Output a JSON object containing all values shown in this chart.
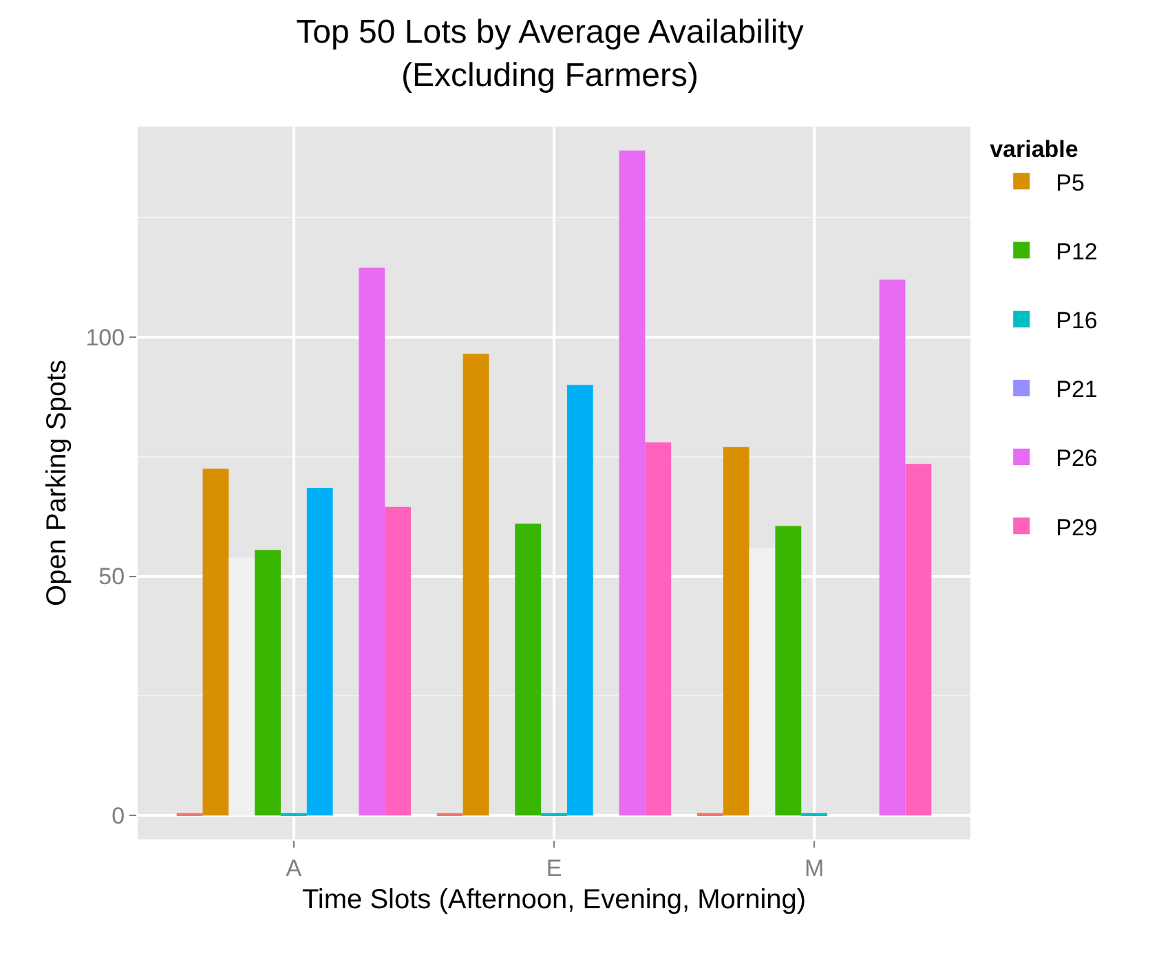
{
  "chart_data": {
    "type": "bar",
    "title": "Top 50 Lots by Average Availability\n(Excluding Farmers)",
    "xlabel": "Time Slots (Afternoon, Evening, Morning)",
    "ylabel": "Open Parking Spots",
    "legend_title": "variable",
    "categories": [
      "A",
      "E",
      "M"
    ],
    "series": [
      {
        "color": "#f8766d",
        "values": [
          0.5,
          0.5,
          0.5
        ]
      },
      {
        "name": "P5",
        "color": "#d89000",
        "values": [
          72.5,
          96.5,
          77
        ]
      },
      {
        "color": "#f0f0f0",
        "values": [
          54,
          null,
          56
        ]
      },
      {
        "name": "P12",
        "color": "#39b600",
        "values": [
          55.5,
          61,
          60.5
        ]
      },
      {
        "name": "P16",
        "color": "#00bfc4",
        "values": [
          0.5,
          0.5,
          0.5
        ]
      },
      {
        "color": "#00b0f6",
        "values": [
          68.5,
          90,
          null
        ]
      },
      {
        "name": "P21",
        "color": "#9590ff",
        "values": [
          null,
          null,
          null
        ]
      },
      {
        "name": "P26",
        "color": "#e76bf3",
        "values": [
          114.5,
          139,
          112
        ]
      },
      {
        "name": "P29",
        "color": "#ff62bc",
        "values": [
          64.5,
          78,
          73.5
        ]
      }
    ],
    "ylim": [
      -5,
      144
    ],
    "yticks": [
      0,
      50,
      100
    ],
    "grid": true,
    "legend": "right"
  }
}
